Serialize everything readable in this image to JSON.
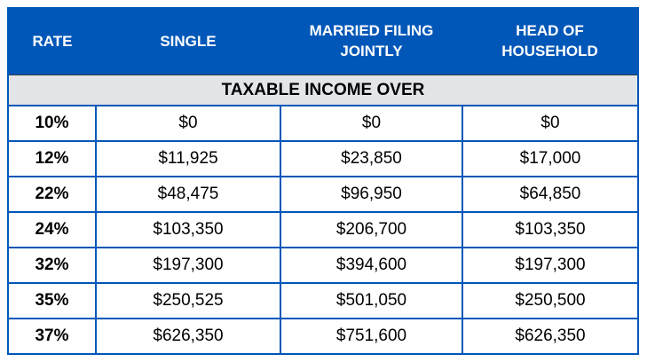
{
  "colors": {
    "header_bg": "#0057B8",
    "header_text": "#FFFFFF",
    "banner_bg": "#E2E6E9",
    "grid_border": "#0057B8",
    "banner_top_border": "#3C3C3C",
    "body_text": "#000000",
    "page_bg": "#FFFFFF"
  },
  "chart_data": {
    "type": "table",
    "columns": [
      "RATE",
      "SINGLE",
      "MARRIED FILING JOINTLY",
      "HEAD OF HOUSEHOLD"
    ],
    "banner_header": "TAXABLE INCOME OVER",
    "rows": [
      [
        "10%",
        "$0",
        "$0",
        "$0"
      ],
      [
        "12%",
        "$11,925",
        "$23,850",
        "$17,000"
      ],
      [
        "22%",
        "$48,475",
        "$96,950",
        "$64,850"
      ],
      [
        "24%",
        "$103,350",
        "$206,700",
        "$103,350"
      ],
      [
        "32%",
        "$197,300",
        "$394,600",
        "$197,300"
      ],
      [
        "35%",
        "$250,525",
        "$501,050",
        "$250,500"
      ],
      [
        "37%",
        "$626,350",
        "$751,600",
        "$626,350"
      ]
    ],
    "rates_percent": [
      10,
      12,
      22,
      24,
      32,
      35,
      37
    ],
    "taxable_income_over": {
      "single": [
        0,
        11925,
        48475,
        103350,
        197300,
        250525,
        626350
      ],
      "married_filing_jointly": [
        0,
        23850,
        96950,
        206700,
        394600,
        501050,
        751600
      ],
      "head_of_household": [
        0,
        17000,
        64850,
        103350,
        197300,
        250500,
        626350
      ]
    },
    "layout": {
      "grid": "full blue grid on data rows",
      "banner_spans_all_columns": true
    }
  }
}
